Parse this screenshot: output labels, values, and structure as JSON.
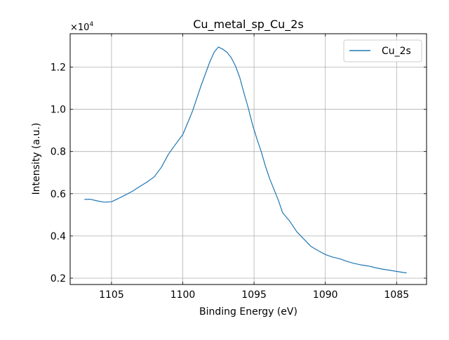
{
  "chart_data": {
    "type": "line",
    "title": "Cu_metal_sp_Cu_2s",
    "xlabel": "Binding Energy (eV)",
    "ylabel": "Intensity (a.u.)",
    "y_scale_label": "×10",
    "y_scale_exp": "4",
    "x_inverted": true,
    "xlim": [
      1107.9,
      1082.9
    ],
    "ylim": [
      0.17,
      1.358
    ],
    "x_ticks": [
      1105,
      1100,
      1095,
      1090,
      1085
    ],
    "x_tick_labels": [
      "1105",
      "1100",
      "1095",
      "1090",
      "1085"
    ],
    "y_ticks": [
      0.2,
      0.4,
      0.6,
      0.8,
      1.0,
      1.2
    ],
    "y_tick_labels": [
      "0.2",
      "0.4",
      "0.6",
      "0.8",
      "1.0",
      "1.2"
    ],
    "grid": true,
    "legend_position": "top-right",
    "series": [
      {
        "name": "Cu_2s",
        "color": "#1f77b4",
        "x": [
          1106.9,
          1106.5,
          1106.0,
          1105.5,
          1105.0,
          1104.5,
          1104.0,
          1103.5,
          1103.0,
          1102.5,
          1102.0,
          1101.5,
          1101.0,
          1100.5,
          1100.0,
          1099.6,
          1099.3,
          1099.0,
          1098.7,
          1098.4,
          1098.1,
          1097.8,
          1097.5,
          1097.2,
          1096.9,
          1096.6,
          1096.3,
          1096.0,
          1095.7,
          1095.4,
          1095.1,
          1094.8,
          1094.5,
          1094.2,
          1093.9,
          1093.6,
          1093.3,
          1093.0,
          1092.5,
          1092.0,
          1091.5,
          1091.0,
          1090.5,
          1090.0,
          1089.5,
          1089.0,
          1088.5,
          1088.0,
          1087.5,
          1087.0,
          1086.5,
          1086.0,
          1085.5,
          1085.0,
          1084.6,
          1084.3
        ],
        "y": [
          0.573,
          0.574,
          0.566,
          0.56,
          0.562,
          0.578,
          0.595,
          0.613,
          0.635,
          0.656,
          0.68,
          0.725,
          0.788,
          0.835,
          0.88,
          0.945,
          0.995,
          1.055,
          1.115,
          1.17,
          1.225,
          1.27,
          1.295,
          1.285,
          1.27,
          1.245,
          1.205,
          1.15,
          1.075,
          1.005,
          0.925,
          0.86,
          0.8,
          0.73,
          0.67,
          0.62,
          0.57,
          0.51,
          0.47,
          0.42,
          0.385,
          0.35,
          0.33,
          0.312,
          0.3,
          0.292,
          0.28,
          0.27,
          0.263,
          0.258,
          0.25,
          0.243,
          0.238,
          0.232,
          0.228,
          0.225
        ]
      }
    ]
  }
}
